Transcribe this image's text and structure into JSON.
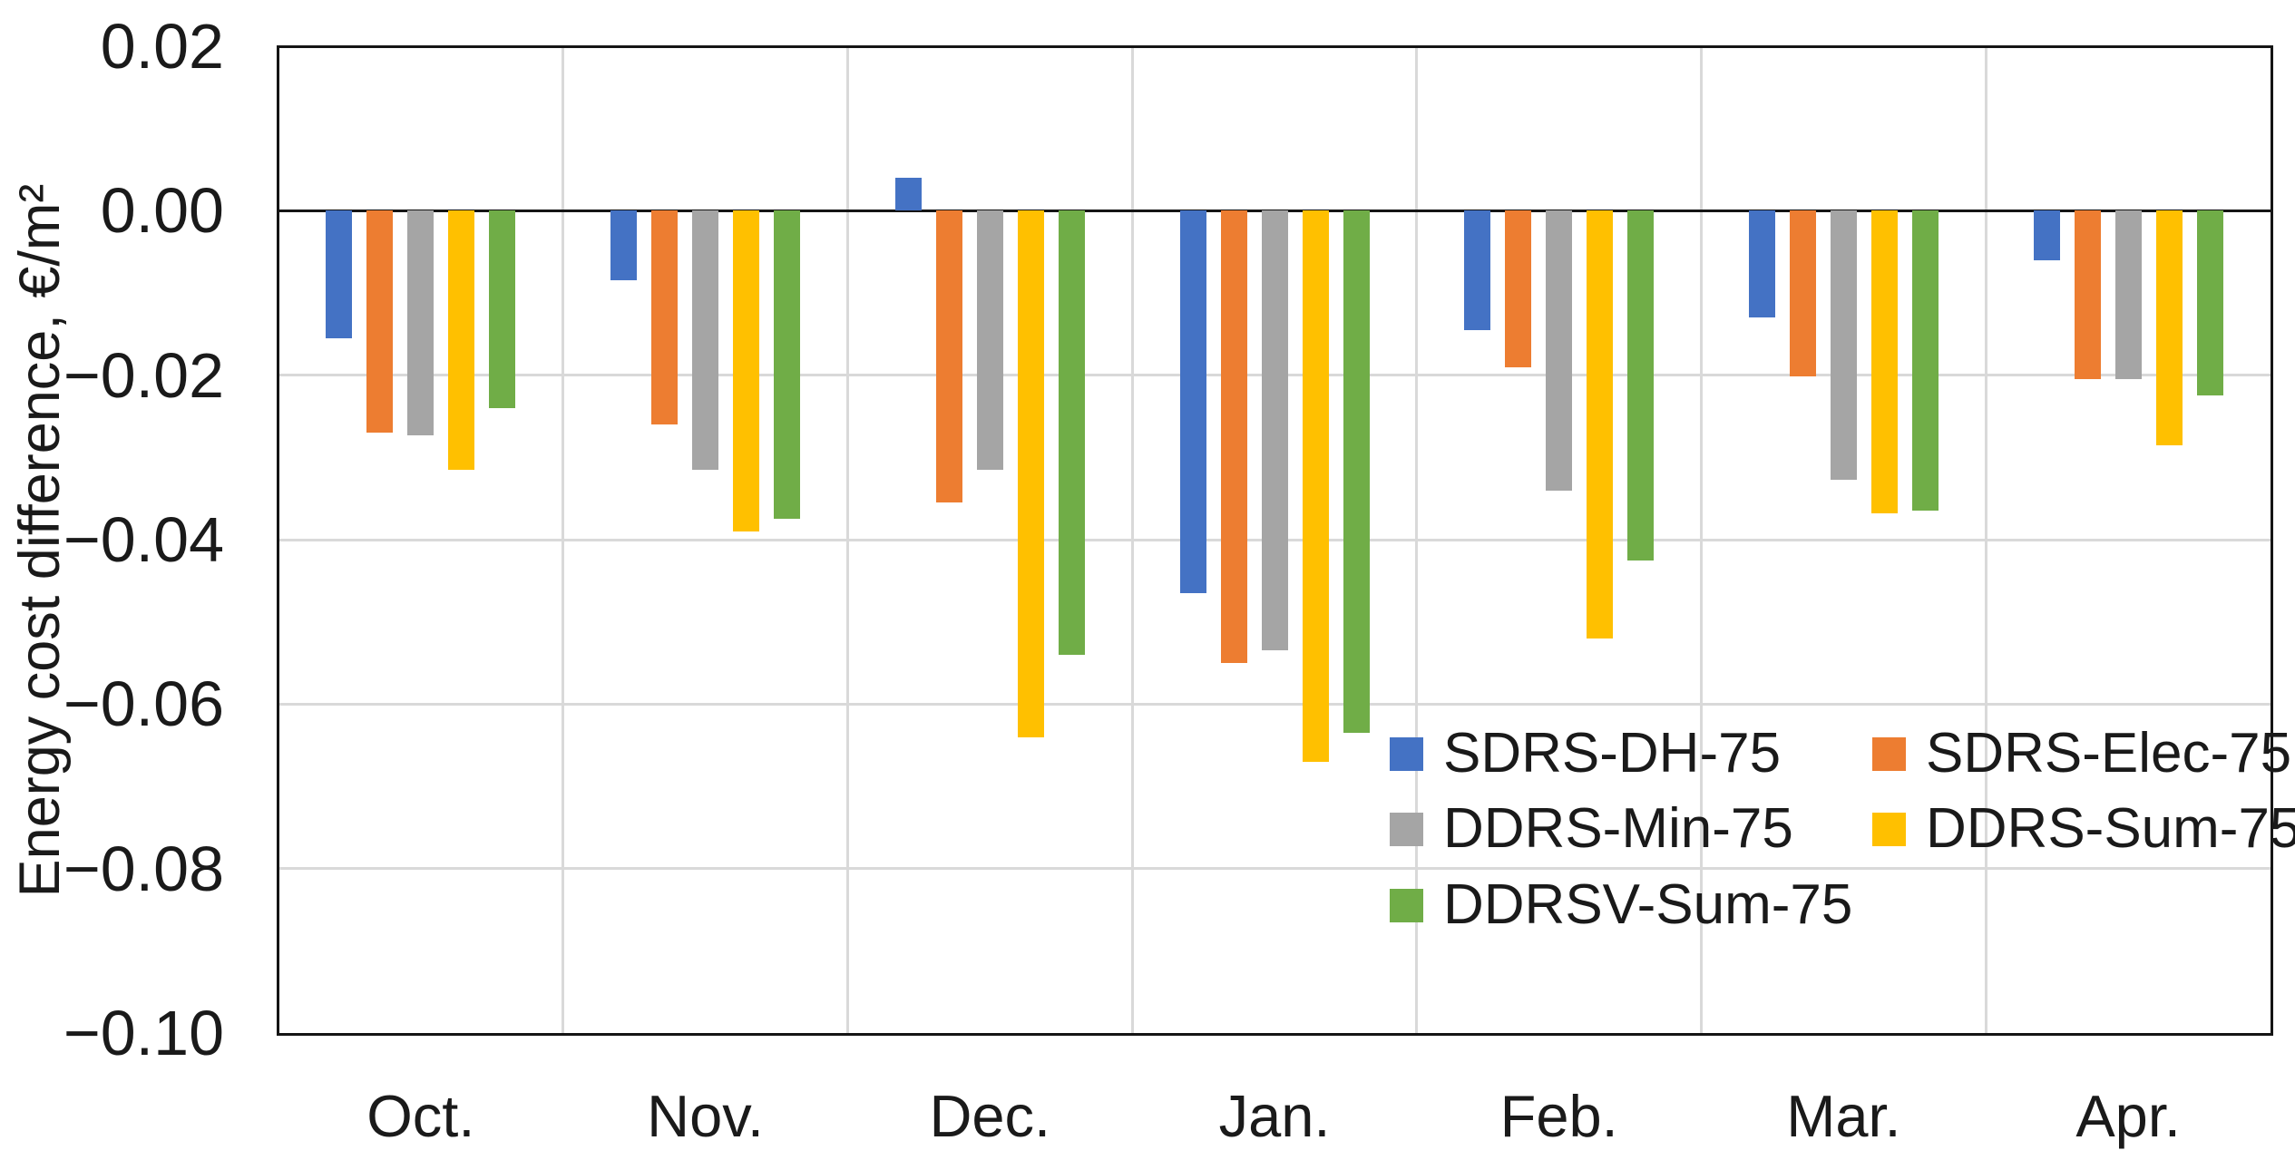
{
  "chart_data": {
    "type": "bar",
    "title": "",
    "xlabel": "",
    "ylabel": "Energy cost difference, €/m²",
    "ylim": [
      -0.1,
      0.02
    ],
    "grid": true,
    "legend_position": "inside-bottom-right",
    "categories": [
      "Oct.",
      "Nov.",
      "Dec.",
      "Jan.",
      "Feb.",
      "Mar.",
      "Apr."
    ],
    "yticks": [
      {
        "label": "0.02",
        "value": 0.02
      },
      {
        "label": "0.00",
        "value": 0.0
      },
      {
        "label": "−0.02",
        "value": -0.02
      },
      {
        "label": "−0.04",
        "value": -0.04
      },
      {
        "label": "−0.06",
        "value": -0.06
      },
      {
        "label": "−0.08",
        "value": -0.08
      },
      {
        "label": "−0.10",
        "value": -0.1
      }
    ],
    "series": [
      {
        "name": "SDRS-DH-75",
        "color": "#4472C4",
        "values": [
          -0.0155,
          -0.0085,
          0.004,
          -0.0465,
          -0.0145,
          -0.013,
          -0.006
        ]
      },
      {
        "name": "SDRS-Elec-75",
        "color": "#ED7D31",
        "values": [
          -0.027,
          -0.026,
          -0.0355,
          -0.055,
          -0.019,
          -0.0202,
          -0.0205
        ]
      },
      {
        "name": "DDRS-Min-75",
        "color": "#A5A5A5",
        "values": [
          -0.0273,
          -0.0315,
          -0.0315,
          -0.0535,
          -0.034,
          -0.0327,
          -0.0205
        ]
      },
      {
        "name": "DDRS-Sum-75",
        "color": "#FFC000",
        "values": [
          -0.0315,
          -0.039,
          -0.064,
          -0.067,
          -0.052,
          -0.0368,
          -0.0285
        ]
      },
      {
        "name": "DDRSV-Sum-75",
        "color": "#70AD47",
        "values": [
          -0.024,
          -0.0375,
          -0.054,
          -0.0635,
          -0.0425,
          -0.0365,
          -0.0225
        ]
      }
    ]
  }
}
